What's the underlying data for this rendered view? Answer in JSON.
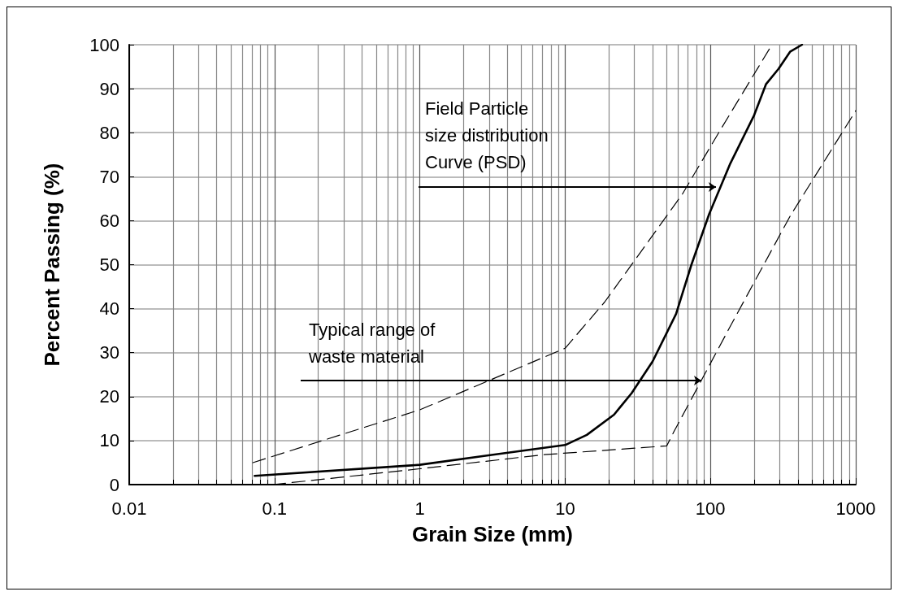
{
  "chart_data": {
    "type": "line",
    "xlabel": "Grain Size (mm)",
    "ylabel": "Percent Passing (%)",
    "log": "x",
    "xlim": [
      0.01,
      1000
    ],
    "xticks": [
      0.01,
      0.1,
      1,
      10,
      100,
      1000
    ],
    "ylim": [
      0,
      100
    ],
    "yticks": [
      0,
      10,
      20,
      30,
      40,
      50,
      60,
      70,
      80,
      90,
      100
    ],
    "grid": true,
    "marker": "none",
    "series": [
      {
        "color": "#000000",
        "line_style": "solid",
        "x": [
          0.073,
          1,
          2.9,
          10,
          14.1,
          21.7,
          28.7,
          40,
          58,
          74,
          98,
          137,
          200,
          241,
          294,
          353,
          427
        ],
        "values": [
          2,
          4.5,
          6.6,
          9,
          11.3,
          15.9,
          20.8,
          28,
          38.8,
          50,
          61.5,
          73,
          84,
          91,
          94.5,
          98.4,
          100
        ]
      },
      {
        "color": "#000000",
        "line_style": "dashed",
        "x": [
          0.071,
          1,
          10,
          18.7,
          33,
          64,
          114,
          265
        ],
        "values": [
          5,
          17,
          31,
          41.5,
          52.8,
          66,
          80,
          100
        ]
      },
      {
        "color": "#000000",
        "line_style": "dashed",
        "x": [
          0.097,
          1,
          7.1,
          50,
          56,
          137,
          353,
          1000
        ],
        "values": [
          0,
          3.6,
          6.8,
          8.8,
          12,
          36,
          61,
          85
        ]
      }
    ],
    "annotations": [
      "Field Particle\nsize distribution\nCurve (PSD)",
      "Typical range of\nwaste material"
    ]
  }
}
